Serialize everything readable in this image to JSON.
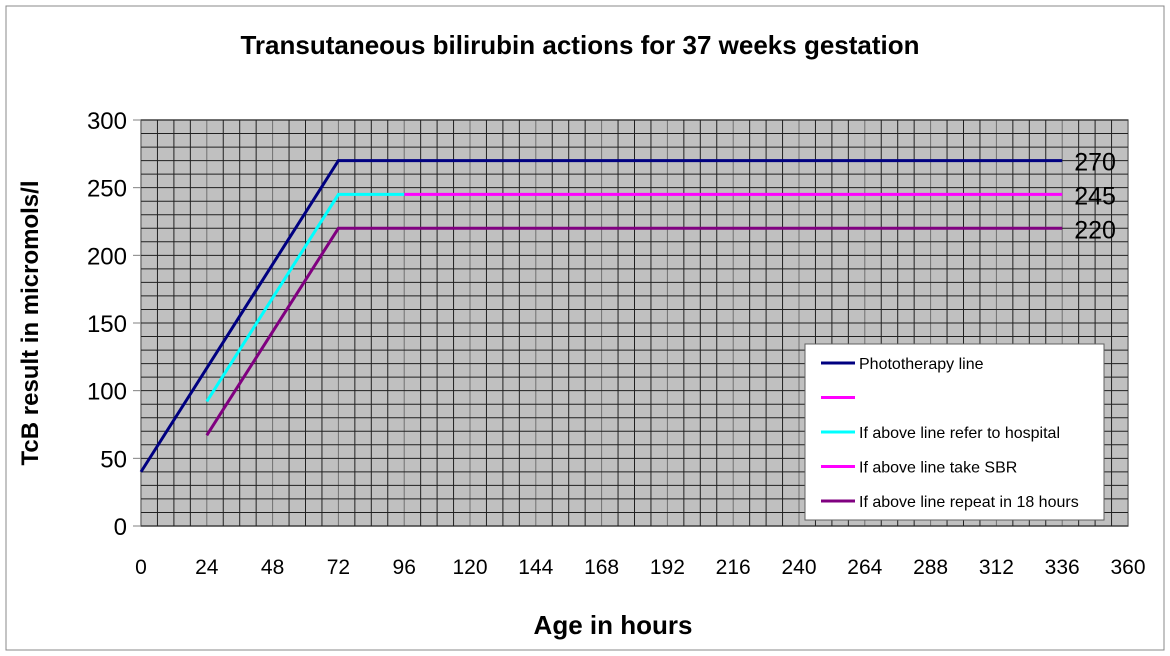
{
  "chart_data": {
    "type": "line",
    "title": "Transutaneous bilirubin actions for 37 weeks gestation",
    "xlabel": "Age in hours",
    "ylabel": "TcB result in micromols/l",
    "xlim": [
      0,
      360
    ],
    "ylim": [
      0,
      300
    ],
    "xticks": [
      0,
      24,
      48,
      72,
      96,
      120,
      144,
      168,
      192,
      216,
      240,
      264,
      288,
      312,
      336,
      360
    ],
    "yticks": [
      0,
      50,
      100,
      150,
      200,
      250,
      300
    ],
    "minor_grid": {
      "x_step": 6,
      "y_step": 10
    },
    "grid": true,
    "plot_background": "#c0c0c0",
    "legend_placement": "bottom-right",
    "series": [
      {
        "name": "Phototherapy line",
        "color": "#000080",
        "points": [
          [
            0,
            40
          ],
          [
            72,
            270
          ],
          [
            336,
            270
          ]
        ]
      },
      {
        "name": "",
        "color": "#ff00ff",
        "points": [
          [
            96,
            245
          ],
          [
            336,
            245
          ]
        ]
      },
      {
        "name": "If above line refer to hospital",
        "color": "#00ffff",
        "points": [
          [
            24,
            92
          ],
          [
            72,
            245
          ],
          [
            96,
            245
          ]
        ]
      },
      {
        "name": "If above line take SBR",
        "color": "#ff00ff",
        "points": []
      },
      {
        "name": "If above line repeat in 18 hours",
        "color": "#800080",
        "points": [
          [
            24,
            67
          ],
          [
            72,
            220
          ],
          [
            336,
            220
          ]
        ]
      }
    ],
    "annotations": [
      {
        "text": "270",
        "x": 336,
        "y": 270
      },
      {
        "text": "245",
        "x": 336,
        "y": 245
      },
      {
        "text": "220",
        "x": 336,
        "y": 220
      }
    ]
  }
}
